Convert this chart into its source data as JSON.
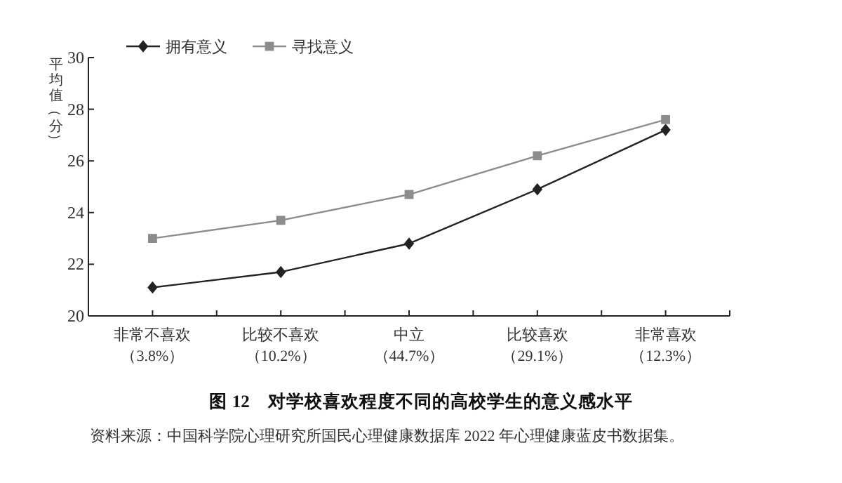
{
  "chart_data": {
    "type": "line",
    "title": "图 12　对学校喜欢程度不同的高校学生的意义感水平",
    "ylabel": "平均值（分）",
    "annotations": [
      "资料来源：中国科学院心理研究所国民心理健康数据库 2022 年心理健康蓝皮书数据集。"
    ],
    "categories": [
      "非常不喜欢（3.8%）",
      "比较不喜欢（10.2%）",
      "中立（44.7%）",
      "比较喜欢（29.1%）",
      "非常喜欢（12.3%）"
    ],
    "series": [
      {
        "name": "拥有意义",
        "color": "#222222",
        "marker": "diamond",
        "values": [
          21.1,
          21.7,
          22.8,
          24.9,
          27.2
        ]
      },
      {
        "name": "寻找意义",
        "color": "#8c8c8c",
        "marker": "square",
        "values": [
          23.0,
          23.7,
          24.7,
          26.2,
          27.6
        ]
      }
    ],
    "ylim": [
      20,
      30
    ],
    "yticks": [
      20,
      22,
      24,
      26,
      28,
      30
    ],
    "grid": false,
    "legend": "top left"
  }
}
